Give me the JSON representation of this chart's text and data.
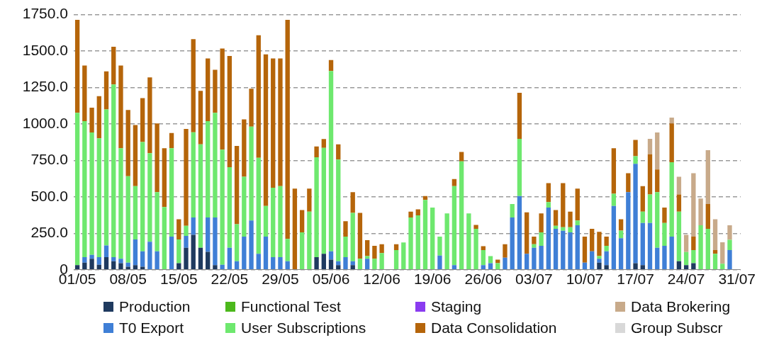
{
  "chart_data": {
    "type": "bar",
    "stacked": true,
    "grid": "y",
    "legend": "bottom",
    "categories": [
      "01/05",
      null,
      null,
      null,
      null,
      null,
      null,
      "08/05",
      null,
      null,
      null,
      null,
      null,
      null,
      "15/05",
      null,
      null,
      null,
      null,
      null,
      null,
      "22/05",
      null,
      null,
      null,
      null,
      null,
      null,
      "29/05",
      null,
      null,
      null,
      null,
      null,
      null,
      "05/06",
      null,
      null,
      null,
      null,
      null,
      null,
      "12/06",
      null,
      null,
      null,
      null,
      null,
      null,
      "19/06",
      null,
      null,
      null,
      null,
      null,
      null,
      "26/06",
      null,
      null,
      null,
      null,
      null,
      null,
      "03/07",
      null,
      null,
      null,
      null,
      null,
      null,
      "10/07",
      null,
      null,
      null,
      null,
      null,
      null,
      "17/07",
      null,
      null,
      null,
      null,
      null,
      null,
      "24/07",
      null,
      null,
      null,
      null,
      null,
      null,
      "31/07"
    ],
    "ylim": [
      0,
      1750
    ],
    "yticks": [
      0,
      {
        "value": 250,
        "label": "250.0"
      },
      {
        "value": 500,
        "label": "500.0"
      },
      {
        "value": 750,
        "label": "750.0"
      },
      {
        "value": 1000,
        "label": "1000.0"
      },
      {
        "value": 1250,
        "label": "1250.0"
      },
      {
        "value": 1500,
        "label": "1500.0"
      },
      {
        "value": 1750,
        "label": "1750.0"
      }
    ],
    "series": [
      {
        "name": "Production",
        "color": "#1f3a5f",
        "values": [
          32,
          49,
          75,
          34,
          86,
          58,
          45,
          21,
          32,
          21,
          null,
          null,
          null,
          null,
          45,
          151,
          240,
          151,
          123,
          32,
          null,
          null,
          null,
          null,
          null,
          null,
          null,
          null,
          null,
          null,
          null,
          null,
          null,
          86,
          110,
          70,
          32,
          null,
          32,
          null,
          null,
          null,
          null,
          null,
          null,
          null,
          null,
          null,
          null,
          null,
          null,
          null,
          null,
          null,
          null,
          null,
          null,
          null,
          null,
          null,
          null,
          null,
          null,
          null,
          null,
          null,
          null,
          null,
          null,
          null,
          null,
          null,
          49,
          32,
          null,
          null,
          null,
          45,
          32,
          null,
          null,
          null,
          null,
          58,
          32,
          45,
          null,
          null,
          null,
          null,
          null,
          null
        ]
      },
      {
        "name": "T0 Export",
        "color": "#3f7fd6",
        "values": [
          null,
          37,
          27,
          52,
          81,
          28,
          30,
          28,
          176,
          106,
          192,
          127,
          null,
          227,
          null,
          81,
          119,
          null,
          236,
          327,
          34,
          151,
          58,
          227,
          338,
          110,
          227,
          86,
          86,
          58,
          null,
          null,
          null,
          null,
          null,
          57,
          26,
          86,
          26,
          null,
          75,
          null,
          null,
          null,
          null,
          null,
          null,
          null,
          null,
          null,
          97,
          null,
          32,
          null,
          null,
          null,
          32,
          45,
          null,
          83,
          359,
          505,
          110,
          151,
          164,
          427,
          281,
          268,
          256,
          305,
          49,
          127,
          26,
          95,
          438,
          216,
          532,
          682,
          289,
          321,
          151,
          164,
          227,
          null,
          null,
          null,
          null,
          null,
          null,
          null,
          135,
          null
        ]
      },
      {
        "name": "Functional Test",
        "color": "#4cb81c",
        "values": [
          null,
          null,
          null,
          null,
          null,
          null,
          null,
          null,
          null,
          null,
          null,
          null,
          null,
          null,
          null,
          null,
          null,
          null,
          null,
          null,
          null,
          null,
          null,
          null,
          null,
          null,
          null,
          null,
          null,
          null,
          null,
          null,
          null,
          null,
          null,
          null,
          null,
          null,
          null,
          null,
          null,
          null,
          null,
          null,
          null,
          null,
          null,
          null,
          null,
          null,
          null,
          null,
          null,
          null,
          null,
          null,
          null,
          null,
          null,
          null,
          null,
          null,
          null,
          null,
          null,
          null,
          null,
          null,
          null,
          null,
          null,
          null,
          null,
          null,
          null,
          null,
          null,
          null,
          null,
          null,
          null,
          null,
          null,
          null,
          null,
          null,
          null,
          null,
          null,
          null,
          null,
          null
        ]
      },
      {
        "name": "User Subscriptions",
        "color": "#6ee86e",
        "values": [
          1044,
          933,
          839,
          816,
          933,
          1185,
          758,
          592,
          365,
          749,
          608,
          405,
          430,
          606,
          163,
          70,
          584,
          709,
          660,
          717,
          790,
          552,
          255,
          411,
          644,
          658,
          211,
          476,
          487,
          153,
          null,
          256,
          399,
          685,
          726,
          1236,
          698,
          141,
          332,
          75,
          19,
          75,
          114,
          null,
          135,
          187,
          359,
          373,
          479,
          427,
          130,
          386,
          541,
          743,
          386,
          281,
          103,
          49,
          45,
          null,
          92,
          393,
          null,
          24,
          92,
          37,
          21,
          24,
          36,
          33,
          null,
          null,
          19,
          37,
          83,
          53,
          null,
          52,
          78,
          195,
          381,
          157,
          511,
          341,
          90,
          90,
          305,
          281,
          110,
          42,
          70,
          null
        ]
      },
      {
        "name": "Staging",
        "color": "#8a3cf0",
        "values": [
          null,
          null,
          null,
          null,
          null,
          null,
          null,
          null,
          null,
          null,
          null,
          null,
          null,
          null,
          null,
          null,
          null,
          null,
          null,
          null,
          null,
          null,
          null,
          null,
          null,
          null,
          null,
          null,
          null,
          null,
          null,
          null,
          null,
          null,
          null,
          null,
          null,
          null,
          null,
          null,
          null,
          null,
          null,
          null,
          null,
          null,
          null,
          null,
          null,
          null,
          null,
          null,
          null,
          null,
          null,
          null,
          null,
          null,
          null,
          null,
          null,
          null,
          null,
          null,
          null,
          null,
          null,
          null,
          null,
          null,
          null,
          null,
          null,
          null,
          null,
          null,
          null,
          null,
          null,
          null,
          null,
          null,
          null,
          null,
          null,
          null,
          null,
          null,
          null,
          null,
          null,
          null
        ]
      },
      {
        "name": "Data Consolidation",
        "color": "#b5650a",
        "values": [
          638,
          382,
          171,
          288,
          260,
          259,
          568,
          455,
          419,
          301,
          519,
          471,
          403,
          105,
          138,
          664,
          639,
          367,
          430,
          295,
          693,
          763,
          536,
          393,
          260,
          840,
          1039,
          887,
          876,
          1503,
          557,
          154,
          158,
          75,
          61,
          75,
          104,
          106,
          142,
          315,
          109,
          89,
          61,
          null,
          40,
          null,
          40,
          41,
          26,
          null,
          null,
          null,
          49,
          65,
          null,
          27,
          27,
          null,
          25,
          92,
          null,
          316,
          284,
          52,
          130,
          130,
          108,
          302,
          107,
          219,
          178,
          154,
          166,
          63,
          312,
          77,
          130,
          112,
          174,
          276,
          156,
          106,
          265,
          117,
          null,
          92,
          null,
          170,
          25,
          null,
          null,
          null
        ]
      },
      {
        "name": "Data Brokering",
        "color": "#c8aa8a",
        "values": [
          null,
          null,
          null,
          null,
          null,
          null,
          null,
          null,
          null,
          null,
          null,
          null,
          null,
          null,
          null,
          null,
          null,
          null,
          null,
          null,
          null,
          null,
          null,
          null,
          null,
          null,
          null,
          null,
          null,
          null,
          null,
          null,
          null,
          null,
          null,
          null,
          null,
          null,
          null,
          null,
          null,
          null,
          null,
          null,
          null,
          null,
          null,
          null,
          null,
          null,
          null,
          null,
          null,
          null,
          null,
          null,
          null,
          null,
          null,
          null,
          null,
          null,
          null,
          null,
          null,
          null,
          null,
          null,
          null,
          null,
          null,
          null,
          null,
          null,
          null,
          null,
          null,
          null,
          null,
          106,
          253,
          null,
          41,
          122,
          118,
          435,
          183,
          369,
          211,
          146,
          100,
          null
        ]
      },
      {
        "name": "Group Subscr",
        "color": "#d8d8d8",
        "values": [
          null,
          null,
          null,
          null,
          null,
          null,
          null,
          null,
          null,
          null,
          null,
          null,
          null,
          null,
          null,
          null,
          null,
          null,
          null,
          null,
          null,
          null,
          null,
          null,
          null,
          null,
          null,
          null,
          null,
          null,
          null,
          null,
          null,
          null,
          null,
          null,
          null,
          null,
          null,
          null,
          null,
          null,
          null,
          null,
          null,
          null,
          null,
          null,
          null,
          null,
          null,
          null,
          null,
          null,
          null,
          null,
          null,
          null,
          null,
          null,
          null,
          null,
          null,
          null,
          null,
          null,
          null,
          null,
          null,
          null,
          null,
          null,
          null,
          null,
          null,
          null,
          null,
          null,
          null,
          null,
          null,
          null,
          null,
          null,
          null,
          null,
          null,
          null,
          null,
          null,
          null,
          null
        ]
      }
    ]
  }
}
